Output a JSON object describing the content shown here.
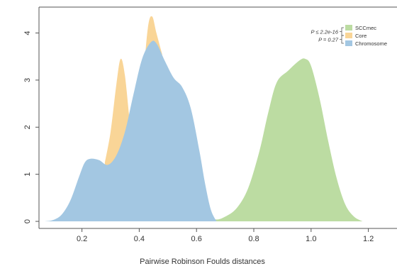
{
  "chart_data": {
    "type": "area",
    "title": "",
    "xlabel": "Pairwise Robinson Foulds distances",
    "ylabel": "",
    "xlim": [
      0.05,
      1.3
    ],
    "ylim": [
      -0.15,
      4.55
    ],
    "x_ticks": [
      {
        "value": 0.2,
        "label": "0.2"
      },
      {
        "value": 0.4,
        "label": "0.4"
      },
      {
        "value": 0.6,
        "label": "0.6"
      },
      {
        "value": 0.8,
        "label": "0.8"
      },
      {
        "value": 1.0,
        "label": "1.0"
      },
      {
        "value": 1.2,
        "label": "1.2"
      }
    ],
    "y_ticks": [
      {
        "value": 0,
        "label": "0"
      },
      {
        "value": 1,
        "label": "1"
      },
      {
        "value": 2,
        "label": "2"
      },
      {
        "value": 3,
        "label": "3"
      },
      {
        "value": 4,
        "label": "4"
      }
    ],
    "grid": false,
    "legend_position": "top-right",
    "series": [
      {
        "name": "SCCmec",
        "color": "#bcdca2",
        "points": [
          [
            0.28,
            0
          ],
          [
            0.33,
            0.08
          ],
          [
            0.38,
            0.3
          ],
          [
            0.43,
            0.55
          ],
          [
            0.48,
            0.68
          ],
          [
            0.53,
            0.7
          ],
          [
            0.58,
            0.65
          ],
          [
            0.62,
            0.45
          ],
          [
            0.65,
            0.12
          ],
          [
            0.67,
            0.04
          ],
          [
            0.7,
            0.1
          ],
          [
            0.74,
            0.28
          ],
          [
            0.78,
            0.7
          ],
          [
            0.82,
            1.5
          ],
          [
            0.85,
            2.3
          ],
          [
            0.88,
            2.95
          ],
          [
            0.92,
            3.2
          ],
          [
            0.96,
            3.42
          ],
          [
            0.98,
            3.45
          ],
          [
            1.0,
            3.3
          ],
          [
            1.03,
            2.6
          ],
          [
            1.06,
            1.7
          ],
          [
            1.09,
            0.9
          ],
          [
            1.12,
            0.35
          ],
          [
            1.15,
            0.1
          ],
          [
            1.18,
            0
          ]
        ]
      },
      {
        "name": "Core",
        "color": "#f9d597",
        "points": [
          [
            0.28,
            1.25
          ],
          [
            0.3,
            1.9
          ],
          [
            0.32,
            2.9
          ],
          [
            0.335,
            3.45
          ],
          [
            0.35,
            3.1
          ],
          [
            0.37,
            2.0
          ],
          [
            0.39,
            1.7
          ],
          [
            0.41,
            2.8
          ],
          [
            0.43,
            4.1
          ],
          [
            0.445,
            4.35
          ],
          [
            0.46,
            4.0
          ],
          [
            0.48,
            3.55
          ]
        ]
      },
      {
        "name": "Chromosome",
        "color": "#a3c7e2",
        "points": [
          [
            0.07,
            0
          ],
          [
            0.1,
            0.03
          ],
          [
            0.13,
            0.15
          ],
          [
            0.16,
            0.45
          ],
          [
            0.19,
            0.95
          ],
          [
            0.21,
            1.25
          ],
          [
            0.23,
            1.33
          ],
          [
            0.26,
            1.3
          ],
          [
            0.29,
            1.2
          ],
          [
            0.32,
            1.4
          ],
          [
            0.35,
            1.9
          ],
          [
            0.38,
            2.7
          ],
          [
            0.41,
            3.45
          ],
          [
            0.44,
            3.8
          ],
          [
            0.46,
            3.78
          ],
          [
            0.49,
            3.4
          ],
          [
            0.52,
            3.05
          ],
          [
            0.55,
            2.85
          ],
          [
            0.58,
            2.4
          ],
          [
            0.61,
            1.5
          ],
          [
            0.63,
            0.8
          ],
          [
            0.65,
            0.25
          ],
          [
            0.67,
            0
          ]
        ]
      }
    ],
    "annotations": [
      {
        "label": "P ≤ 2.2e-16",
        "between": [
          "SCCmec",
          "Core"
        ]
      },
      {
        "label": "P = 0.27",
        "between": [
          "Core",
          "Chromosome"
        ]
      }
    ]
  }
}
